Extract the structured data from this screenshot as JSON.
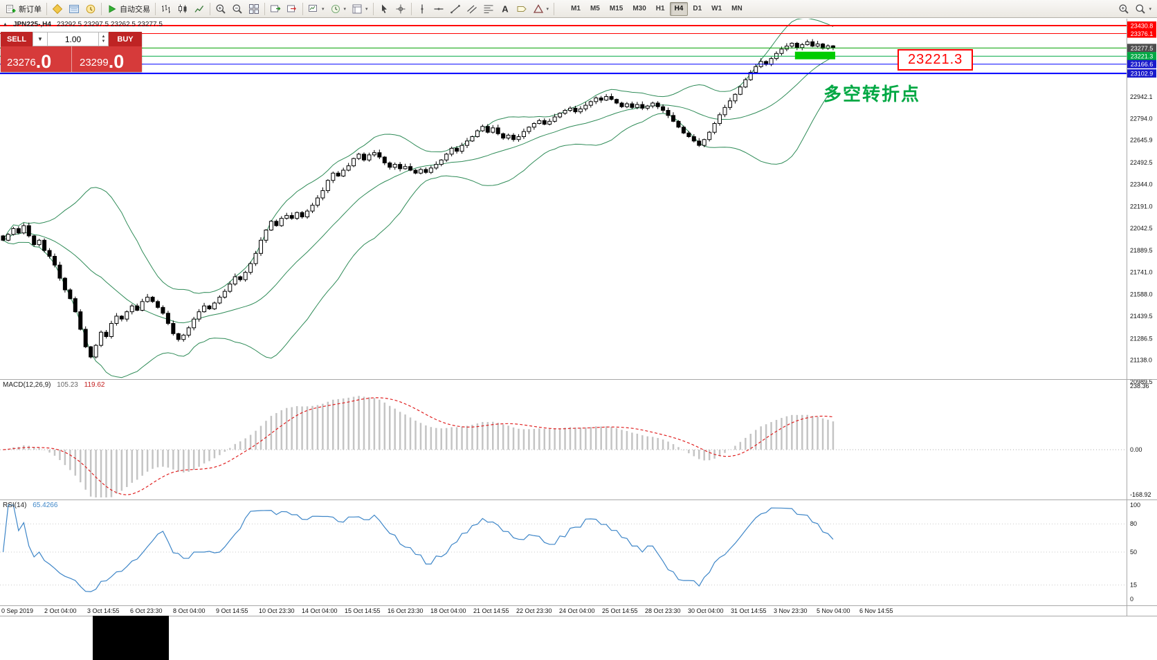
{
  "toolbar": {
    "groups": [
      {
        "items": [
          {
            "name": "new-order-button",
            "icon": "new-order",
            "label": "新订单"
          }
        ]
      },
      {
        "items": [
          {
            "name": "market-watch-button",
            "icon": "market-watch"
          },
          {
            "name": "data-window-button",
            "icon": "data-window"
          },
          {
            "name": "navigator-button",
            "icon": "navigator"
          }
        ]
      },
      {
        "items": [
          {
            "name": "autotrading-button",
            "icon": "autotrade",
            "label": "自动交易"
          }
        ]
      },
      {
        "items": [
          {
            "name": "ohlc-bars-button",
            "icon": "bar-chart"
          },
          {
            "name": "candlestick-button",
            "icon": "candle-chart"
          },
          {
            "name": "line-chart-button",
            "icon": "line-chart"
          }
        ]
      },
      {
        "items": [
          {
            "name": "zoom-in-button",
            "icon": "zoom-in"
          },
          {
            "name": "zoom-out-button",
            "icon": "zoom-out"
          },
          {
            "name": "tile-windows-button",
            "icon": "tile-windows"
          }
        ]
      },
      {
        "items": [
          {
            "name": "autoscroll-button",
            "icon": "autoscroll"
          },
          {
            "name": "chart-shift-button",
            "icon": "chart-shift"
          }
        ]
      },
      {
        "items": [
          {
            "name": "indicators-button",
            "icon": "new-chart",
            "caret": true
          },
          {
            "name": "periods-button",
            "icon": "clock",
            "caret": true
          },
          {
            "name": "templates-button",
            "icon": "template",
            "caret": true
          }
        ]
      },
      {
        "items": [
          {
            "name": "cursor-button",
            "icon": "cursor"
          },
          {
            "name": "crosshair-button",
            "icon": "crosshair"
          }
        ]
      },
      {
        "items": [
          {
            "name": "vertical-line-button",
            "icon": "vline"
          },
          {
            "name": "horizontal-line-button",
            "icon": "hline"
          },
          {
            "name": "trendline-button",
            "icon": "trendline"
          },
          {
            "name": "channel-button",
            "icon": "channel"
          },
          {
            "name": "fibonacci-button",
            "icon": "fibo"
          },
          {
            "name": "text-button",
            "icon": "text"
          },
          {
            "name": "label-button",
            "icon": "label"
          },
          {
            "name": "shapes-button",
            "icon": "shapes",
            "caret": true
          }
        ]
      }
    ],
    "timeframes": [
      {
        "label": "M1"
      },
      {
        "label": "M5"
      },
      {
        "label": "M15"
      },
      {
        "label": "M30"
      },
      {
        "label": "H1"
      },
      {
        "label": "H4",
        "active": true
      },
      {
        "label": "D1"
      },
      {
        "label": "W1"
      },
      {
        "label": "MN"
      }
    ],
    "right_items": [
      {
        "name": "symbol-search-button",
        "icon": "zoom-in"
      },
      {
        "name": "quick-search-button",
        "icon": "search",
        "caret": true
      }
    ]
  },
  "chart": {
    "symbol_period": "JPN225-,H4",
    "ohlc_text": "23292.5 23297.5 23262.5 23277.5"
  },
  "trade_panel": {
    "sell_label": "SELL",
    "buy_label": "BUY",
    "volume": "1.00",
    "sell_price_main": "23276",
    "sell_price_frac": ".0",
    "buy_price_main": "23299",
    "buy_price_frac": ".0"
  },
  "annotations": {
    "price_box": "23221.3",
    "turning_point": "多空转折点"
  },
  "macd": {
    "label": "MACD(12,26,9)",
    "value_main": "105.23",
    "value_signal": "119.62",
    "axis": [
      {
        "value": 238.36,
        "label": "238.36"
      },
      {
        "value": 0,
        "label": "0.00"
      },
      {
        "value": -168.92,
        "label": "-168.92"
      }
    ]
  },
  "rsi": {
    "label": "RSI(14)",
    "value": "65.4266",
    "axis": [
      {
        "value": 100,
        "label": "100"
      },
      {
        "value": 80,
        "label": "80"
      },
      {
        "value": 50,
        "label": "50"
      },
      {
        "value": 15,
        "label": "15"
      },
      {
        "value": 0,
        "label": "0"
      }
    ],
    "levels": [
      80,
      50,
      15
    ]
  },
  "chart_data": {
    "type": "candlestick",
    "symbol": "JPN225-",
    "timeframe": "H4",
    "ohlc_current": {
      "open": 23292.5,
      "high": 23297.5,
      "low": 23262.5,
      "close": 23277.5
    },
    "price_axis_ticks": [
      22942.1,
      22794.0,
      22645.9,
      22492.5,
      22344.0,
      22191.0,
      22042.5,
      21889.5,
      21741.0,
      21588.0,
      21439.5,
      21286.5,
      21138.0,
      20989.5
    ],
    "levels": [
      {
        "price": 23430.8,
        "color": "#ff0000",
        "width": 2
      },
      {
        "price": 23376.1,
        "color": "#ff0000",
        "width": 1
      },
      {
        "price": 23277.5,
        "color": "#00a000",
        "width": 1,
        "label_bg": "#4d4d4d",
        "current": true
      },
      {
        "price": 23221.3,
        "color": "#00a843",
        "width": 1
      },
      {
        "price": 23166.6,
        "color": "#0000ff",
        "width": 1,
        "label_bg": "#1a1acc"
      },
      {
        "price": 23102.9,
        "color": "#0000ff",
        "width": 2,
        "label_bg": "#1a1acc"
      }
    ],
    "highlight_zone": {
      "bar_start": 154,
      "bar_end": 161,
      "price_top": 23252,
      "price_bottom": 23200,
      "color": "#00cc00"
    },
    "time_labels": [
      "0 Sep 2019",
      "2 Oct 04:00",
      "3 Oct 14:55",
      "6 Oct 23:30",
      "8 Oct 04:00",
      "9 Oct 14:55",
      "10 Oct 23:30",
      "14 Oct 04:00",
      "15 Oct 14:55",
      "16 Oct 23:30",
      "18 Oct 04:00",
      "21 Oct 14:55",
      "22 Oct 23:30",
      "24 Oct 04:00",
      "25 Oct 14:55",
      "28 Oct 23:30",
      "30 Oct 04:00",
      "31 Oct 14:55",
      "3 Nov 23:30",
      "5 Nov 04:00",
      "6 Nov 14:55"
    ],
    "closes": [
      21960,
      22000,
      22040,
      22010,
      22060,
      21990,
      21930,
      21960,
      21890,
      21850,
      21790,
      21700,
      21620,
      21560,
      21470,
      21350,
      21230,
      21160,
      21240,
      21330,
      21300,
      21390,
      21440,
      21420,
      21470,
      21510,
      21480,
      21540,
      21570,
      21540,
      21500,
      21460,
      21390,
      21320,
      21280,
      21310,
      21360,
      21420,
      21470,
      21510,
      21490,
      21530,
      21570,
      21610,
      21660,
      21710,
      21690,
      21740,
      21800,
      21870,
      21960,
      22030,
      22090,
      22060,
      22110,
      22130,
      22110,
      22150,
      22120,
      22160,
      22200,
      22250,
      22300,
      22370,
      22420,
      22400,
      22440,
      22470,
      22520,
      22550,
      22510,
      22545,
      22560,
      22530,
      22490,
      22460,
      22480,
      22450,
      22465,
      22440,
      22420,
      22445,
      22425,
      22455,
      22480,
      22510,
      22550,
      22590,
      22570,
      22610,
      22640,
      22670,
      22710,
      22740,
      22700,
      22730,
      22690,
      22660,
      22680,
      22650,
      22670,
      22705,
      22735,
      22760,
      22780,
      22755,
      22775,
      22805,
      22830,
      22850,
      22865,
      22840,
      22860,
      22885,
      22910,
      22935,
      22920,
      22945,
      22925,
      22900,
      22875,
      22895,
      22870,
      22890,
      22865,
      22880,
      22900,
      22875,
      22850,
      22815,
      22775,
      22735,
      22695,
      22670,
      22640,
      22610,
      22650,
      22700,
      22760,
      22820,
      22870,
      22915,
      22960,
      23010,
      23060,
      23110,
      23150,
      23185,
      23165,
      23205,
      23240,
      23270,
      23290,
      23310,
      23280,
      23300,
      23320,
      23290,
      23305,
      23275,
      23292,
      23277.5
    ],
    "indicators": {
      "bollinger": {
        "period": 20,
        "deviation": 2,
        "color": "#2e8b57"
      },
      "macd": {
        "fast": 12,
        "slow": 26,
        "signal": 9,
        "histogram_color": "#c4c4c4",
        "signal_color": "#e02020"
      },
      "rsi": {
        "period": 14,
        "color": "#3e86c8"
      }
    }
  }
}
